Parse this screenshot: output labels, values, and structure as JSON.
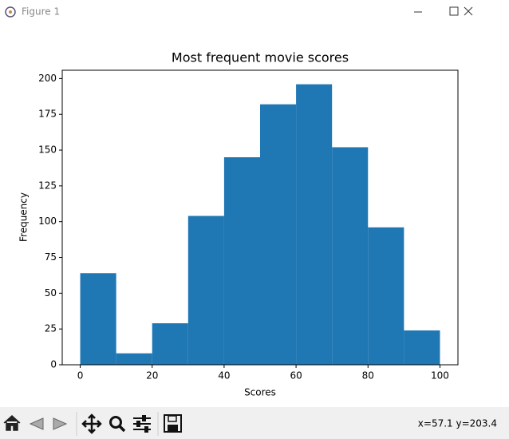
{
  "window": {
    "title": "Figure 1"
  },
  "chart_data": {
    "type": "histogram",
    "title": "Most frequent movie scores",
    "x_label": "Scores",
    "y_label": "Frequency",
    "bins": [
      0,
      10,
      20,
      30,
      40,
      50,
      60,
      70,
      80,
      90,
      100
    ],
    "counts": [
      64,
      8,
      29,
      104,
      145,
      182,
      196,
      152,
      96,
      24
    ],
    "color": "#1f77b4",
    "xlim": [
      -5,
      105
    ],
    "xticks": [
      0,
      20,
      40,
      60,
      80,
      100
    ],
    "ylim": [
      0,
      205.8
    ],
    "yticks": [
      0,
      25,
      50,
      75,
      100,
      125,
      150,
      175,
      200
    ]
  },
  "status": {
    "coords": "x=57.1 y=203.4"
  }
}
